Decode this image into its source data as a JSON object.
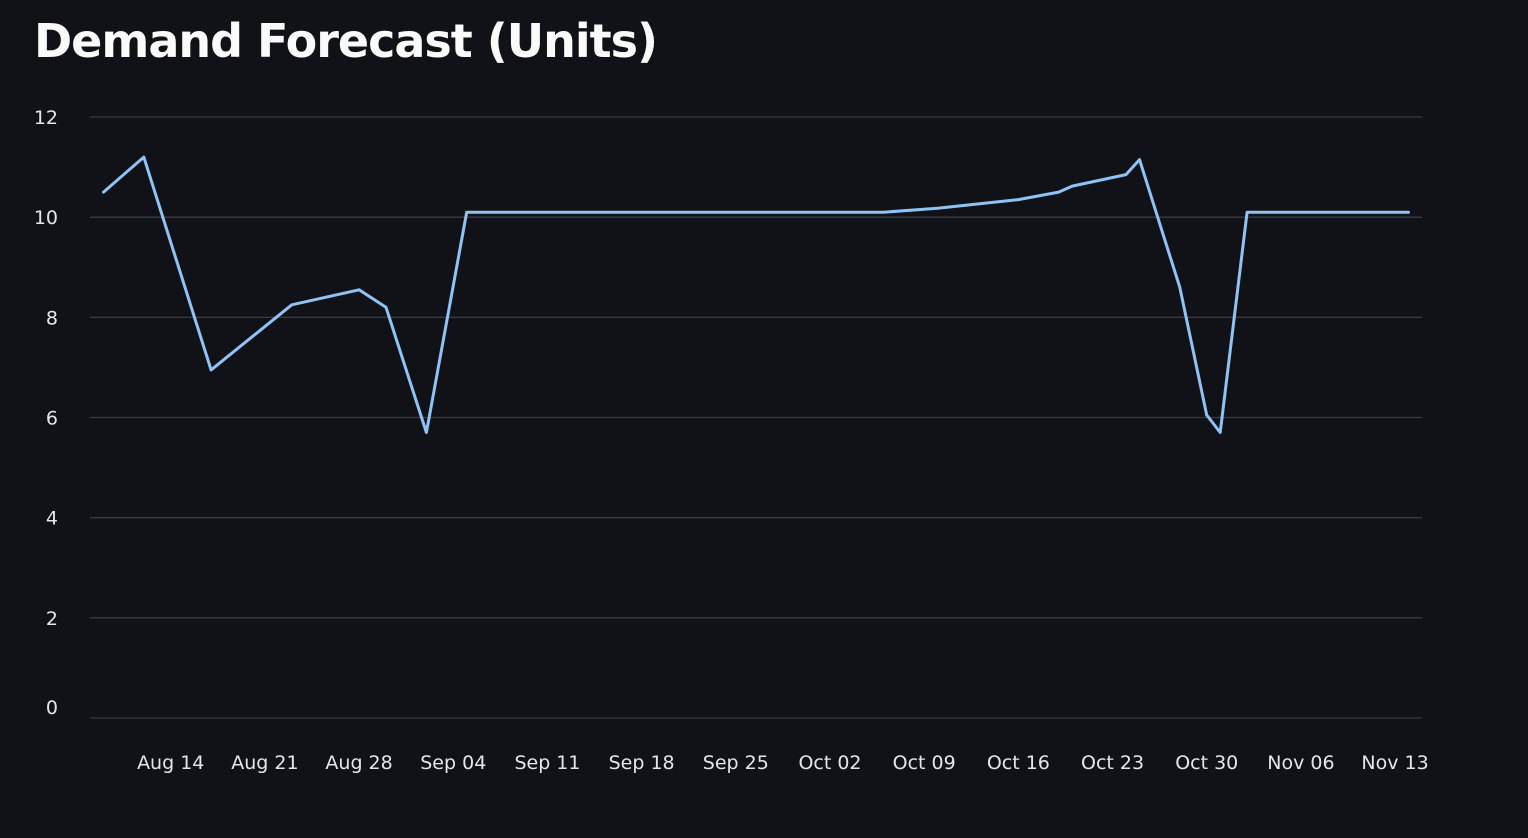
{
  "title": "Demand Forecast (Units)",
  "colors": {
    "background": "#111217",
    "series": "#8fc3f5",
    "grid": "#3a3b42",
    "text": "#fafafa"
  },
  "chart_data": {
    "type": "line",
    "title": "Demand Forecast (Units)",
    "xlabel": "",
    "ylabel": "",
    "grid": true,
    "legend": "none",
    "xlim": [
      "2023-08-08",
      "2023-11-15"
    ],
    "ylim": [
      0,
      12
    ],
    "y_ticks": [
      0,
      2,
      4,
      6,
      8,
      10,
      12
    ],
    "x_ticks": [
      {
        "date": "2023-08-14",
        "label": "Aug 14"
      },
      {
        "date": "2023-08-21",
        "label": "Aug 21"
      },
      {
        "date": "2023-08-28",
        "label": "Aug 28"
      },
      {
        "date": "2023-09-04",
        "label": "Sep 04"
      },
      {
        "date": "2023-09-11",
        "label": "Sep 11"
      },
      {
        "date": "2023-09-18",
        "label": "Sep 18"
      },
      {
        "date": "2023-09-25",
        "label": "Sep 25"
      },
      {
        "date": "2023-10-02",
        "label": "Oct 02"
      },
      {
        "date": "2023-10-09",
        "label": "Oct 09"
      },
      {
        "date": "2023-10-16",
        "label": "Oct 16"
      },
      {
        "date": "2023-10-23",
        "label": "Oct 23"
      },
      {
        "date": "2023-10-30",
        "label": "Oct 30"
      },
      {
        "date": "2023-11-06",
        "label": "Nov 06"
      },
      {
        "date": "2023-11-13",
        "label": "Nov 13"
      }
    ],
    "series": [
      {
        "values": [
          {
            "x": "2023-08-09",
            "y": 10.5
          },
          {
            "x": "2023-08-12",
            "y": 11.2
          },
          {
            "x": "2023-08-17",
            "y": 6.95
          },
          {
            "x": "2023-08-23",
            "y": 8.25
          },
          {
            "x": "2023-08-28",
            "y": 8.55
          },
          {
            "x": "2023-08-30",
            "y": 8.2
          },
          {
            "x": "2023-09-02",
            "y": 5.7
          },
          {
            "x": "2023-09-05",
            "y": 10.1
          },
          {
            "x": "2023-10-06",
            "y": 10.1
          },
          {
            "x": "2023-10-10",
            "y": 10.18
          },
          {
            "x": "2023-10-16",
            "y": 10.35
          },
          {
            "x": "2023-10-19",
            "y": 10.5
          },
          {
            "x": "2023-10-20",
            "y": 10.62
          },
          {
            "x": "2023-10-24",
            "y": 10.85
          },
          {
            "x": "2023-10-25",
            "y": 11.15
          },
          {
            "x": "2023-10-28",
            "y": 8.6
          },
          {
            "x": "2023-10-30",
            "y": 6.05
          },
          {
            "x": "2023-10-31",
            "y": 5.7
          },
          {
            "x": "2023-11-02",
            "y": 10.1
          },
          {
            "x": "2023-11-14",
            "y": 10.1
          }
        ]
      }
    ]
  }
}
